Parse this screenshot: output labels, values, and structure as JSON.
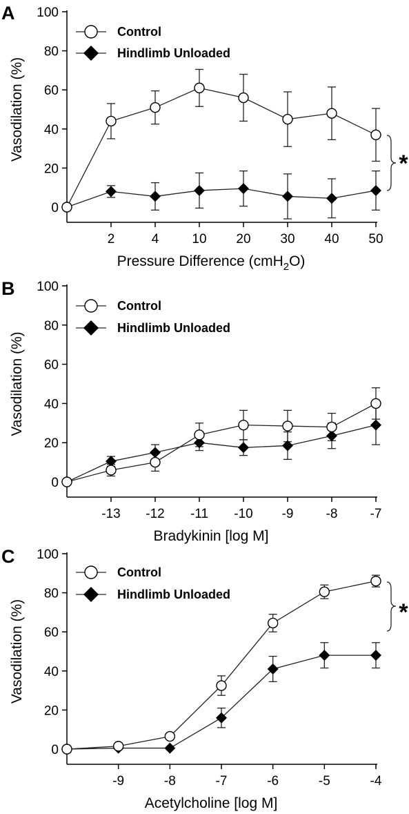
{
  "chart_data": [
    {
      "panel": "A",
      "type": "line",
      "xlabel_parts": [
        "Pressure Difference (cmH",
        "2",
        "O)"
      ],
      "ylabel": "Vasodilation (%)",
      "ylim": [
        0,
        100
      ],
      "yticks": [
        "0",
        "20",
        "40",
        "60",
        "80",
        "100"
      ],
      "x_tick_labels": [
        "2",
        "4",
        "10",
        "20",
        "30",
        "40",
        "50"
      ],
      "significance": "*",
      "series": [
        {
          "name": "Control",
          "marker": "open-circle",
          "values": [
            0,
            44,
            51,
            61,
            56,
            45,
            48,
            37
          ],
          "errors": [
            0,
            9,
            8.5,
            9.5,
            12,
            14,
            13.5,
            13.5
          ]
        },
        {
          "name": "Hindlimb Unloaded",
          "marker": "filled-diamond",
          "values": [
            0,
            8,
            5.5,
            8.5,
            9.5,
            5.5,
            4.5,
            8.5
          ],
          "errors": [
            0,
            3,
            7,
            9,
            9,
            11.5,
            10,
            10
          ]
        }
      ]
    },
    {
      "panel": "B",
      "type": "line",
      "xlabel_parts": [
        "Bradykinin [log M]"
      ],
      "ylabel": "Vasodilation (%)",
      "ylim": [
        0,
        100
      ],
      "yticks": [
        "0",
        "20",
        "40",
        "60",
        "80",
        "100"
      ],
      "x_tick_labels": [
        "-13",
        "-12",
        "-11",
        "-10",
        "-9",
        "-8",
        "-7"
      ],
      "significance": "",
      "series": [
        {
          "name": "Control",
          "marker": "open-circle",
          "values": [
            0,
            6,
            10,
            24,
            29,
            28.5,
            28,
            40
          ],
          "errors": [
            0,
            3,
            4.5,
            6,
            7.5,
            8,
            7,
            8
          ]
        },
        {
          "name": "Hindlimb Unloaded",
          "marker": "filled-diamond",
          "values": [
            0,
            10.5,
            15,
            20,
            17.5,
            18.5,
            23.5,
            29
          ],
          "errors": [
            0,
            2.5,
            4,
            4,
            4,
            7,
            6.5,
            10
          ]
        }
      ]
    },
    {
      "panel": "C",
      "type": "line",
      "xlabel_parts": [
        "Acetylcholine [log M]"
      ],
      "ylabel": "Vasodilation (%)",
      "ylim": [
        0,
        100
      ],
      "yticks": [
        "0",
        "20",
        "40",
        "60",
        "80",
        "100"
      ],
      "x_tick_labels": [
        "-9",
        "-8",
        "-7",
        "-6",
        "-5",
        "-4"
      ],
      "significance": "*",
      "series": [
        {
          "name": "Control",
          "marker": "open-circle",
          "values": [
            0,
            1.5,
            6.5,
            32.5,
            64.5,
            80.5,
            86
          ],
          "errors": [
            0,
            0,
            0,
            5,
            4.5,
            3.5,
            3
          ]
        },
        {
          "name": "Hindlimb Unloaded",
          "marker": "filled-diamond",
          "values": [
            0,
            0.5,
            0.5,
            16,
            41,
            48,
            48
          ],
          "errors": [
            0,
            0,
            0,
            5,
            6.5,
            6.5,
            6.5
          ]
        }
      ]
    }
  ]
}
